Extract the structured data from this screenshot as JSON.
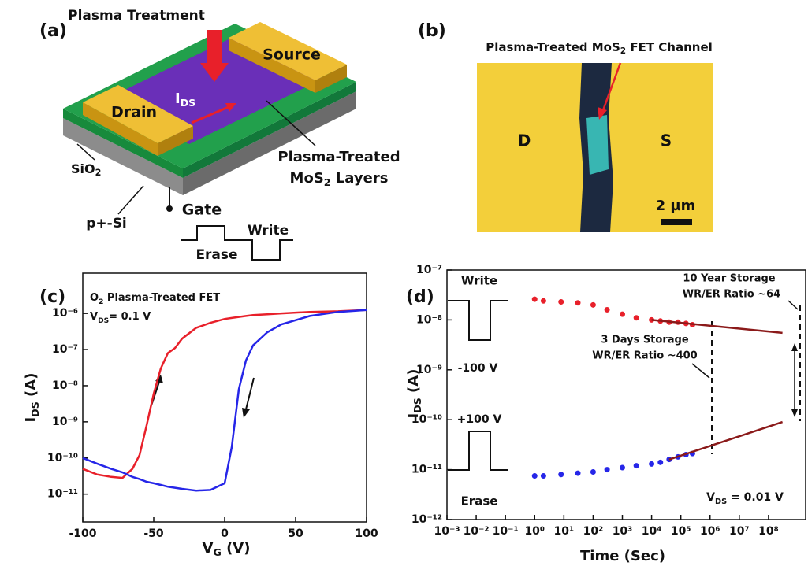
{
  "panel_labels": [
    "(a)",
    "(b)",
    "(c)",
    "(d)"
  ],
  "diagram": {
    "plasma": "Plasma Treatment",
    "source": "Source",
    "drain": "Drain",
    "ids": {
      "main": "I",
      "sub": "DS"
    },
    "sio2": {
      "main": "SiO",
      "sub": "2"
    },
    "mos2_line1": "Plasma-Treated",
    "mos2_line2": {
      "main": "MoS",
      "sub": "2",
      "rest": " Layers"
    },
    "substrate": "p+-Si",
    "gate": "Gate",
    "write": "Write",
    "erase": "Erase"
  },
  "micrograph": {
    "title": {
      "main": "Plasma-Treated MoS",
      "sub": "2",
      "rest": " FET Channel"
    },
    "drain": "D",
    "source": "S",
    "scale": "2 µm"
  },
  "chart_data": [
    {
      "type": "line",
      "log_y": true,
      "x_label": {
        "main": "V",
        "sub": "G",
        "rest": " (V)"
      },
      "y_label": {
        "main": "I",
        "sub": "DS",
        "rest": " (A)"
      },
      "annotations": [
        {
          "main": "O",
          "sub": "2",
          "rest": " Plasma-Treated FET"
        },
        {
          "main": "V",
          "sub": "DS",
          "rest": "= 0.1 V"
        }
      ],
      "x": [
        -100,
        -90,
        -80,
        -72,
        -65,
        -60,
        -55,
        -50,
        -45,
        -40,
        -35,
        -30,
        -20,
        -10,
        0,
        5,
        10,
        15,
        20,
        30,
        40,
        60,
        80,
        100
      ],
      "series": [
        {
          "color": "#e8202a",
          "values": [
            5e-11,
            3.5e-11,
            3e-11,
            2.8e-11,
            5e-11,
            1.2e-10,
            8e-10,
            6e-09,
            3e-08,
            8e-08,
            1.1e-07,
            2e-07,
            4e-07,
            5.5e-07,
            7e-07,
            7.5e-07,
            8e-07,
            8.5e-07,
            9e-07,
            9.5e-07,
            1e-06,
            1.1e-06,
            1.15e-06,
            1.25e-06
          ]
        },
        {
          "color": "#2626e8",
          "values": [
            1e-10,
            7e-11,
            5e-11,
            4e-11,
            3e-11,
            2.6e-11,
            2.2e-11,
            2e-11,
            1.8e-11,
            1.6e-11,
            1.5e-11,
            1.4e-11,
            1.25e-11,
            1.3e-11,
            2e-11,
            2e-10,
            8e-09,
            5e-08,
            1.3e-07,
            3e-07,
            5e-07,
            8.5e-07,
            1.1e-06,
            1.25e-06
          ]
        }
      ],
      "xlim": [
        -100,
        100
      ],
      "xticks": [
        -100,
        -50,
        0,
        50,
        100
      ],
      "ylim": [
        1.7e-12,
        1.3e-05
      ],
      "yticks": [
        {
          "value": 1e-11,
          "label": "10⁻¹¹"
        },
        {
          "value": 1e-10,
          "label": "10⁻¹⁰"
        },
        {
          "value": 1e-09,
          "label": "10⁻⁹"
        },
        {
          "value": 1e-08,
          "label": "10⁻⁸"
        },
        {
          "value": 1e-07,
          "label": "10⁻⁷"
        },
        {
          "value": 1e-06,
          "label": "10⁻⁶"
        }
      ]
    },
    {
      "type": "scatter",
      "log_x": true,
      "log_y": true,
      "x_label": "Time (Sec)",
      "y_label": {
        "main": "I",
        "sub": "DS",
        "rest": " (A)"
      },
      "annotations": [
        "10 Year Storage",
        "WR/ER Ratio ~64",
        "3 Days Storage",
        "WR/ER Ratio ~400",
        "-100 V",
        "+100 V",
        {
          "main": "V",
          "sub": "DS",
          "rest": " = 0.01 V"
        }
      ],
      "series": [
        {
          "name": "Write",
          "style": "dots",
          "color": "#e8202a",
          "x": [
            1,
            2,
            8,
            30,
            100,
            300,
            1000,
            3000,
            10000,
            20000,
            40000,
            80000,
            150000,
            250000
          ],
          "values": [
            2.6e-08,
            2.4e-08,
            2.3e-08,
            2.2e-08,
            2e-08,
            1.6e-08,
            1.3e-08,
            1.1e-08,
            1e-08,
            9.5e-09,
            9e-09,
            9e-09,
            8.5e-09,
            8e-09
          ]
        },
        {
          "name": "Erase",
          "style": "dots",
          "color": "#2626e8",
          "x": [
            1,
            2,
            8,
            30,
            100,
            300,
            1000,
            3000,
            10000,
            20000,
            40000,
            80000,
            150000,
            250000
          ],
          "values": [
            7.5e-12,
            7.5e-12,
            8e-12,
            8.5e-12,
            9e-12,
            1e-11,
            1.1e-11,
            1.2e-11,
            1.3e-11,
            1.4e-11,
            1.6e-11,
            1.8e-11,
            2e-11,
            2.1e-11
          ]
        },
        {
          "style": "line",
          "color": "#8b1a1a",
          "x": [
            10000,
            300000000
          ],
          "values": [
            1e-08,
            5.5e-09
          ]
        },
        {
          "style": "line",
          "color": "#8b1a1a",
          "x": [
            40000,
            300000000
          ],
          "values": [
            1.6e-11,
            9e-11
          ]
        }
      ],
      "xlim": [
        0.001,
        1860000000
      ],
      "xticks": [
        {
          "value": 0.001,
          "label": "10⁻³"
        },
        {
          "value": 0.01,
          "label": "10⁻²"
        },
        {
          "value": 0.1,
          "label": "10⁻¹"
        },
        {
          "value": 1,
          "label": "10⁰"
        },
        {
          "value": 10,
          "label": "10¹"
        },
        {
          "value": 100,
          "label": "10²"
        },
        {
          "value": 1000,
          "label": "10³"
        },
        {
          "value": 10000,
          "label": "10⁴"
        },
        {
          "value": 100000,
          "label": "10⁵"
        },
        {
          "value": 1000000,
          "label": "10⁶"
        },
        {
          "value": 10000000,
          "label": "10⁷"
        },
        {
          "value": 100000000,
          "label": "10⁸"
        }
      ],
      "ylim": [
        1e-12,
        1e-07
      ],
      "yticks": [
        {
          "value": 1e-12,
          "label": "10⁻¹²"
        },
        {
          "value": 1e-11,
          "label": "10⁻¹¹"
        },
        {
          "value": 1e-10,
          "label": "10⁻¹⁰"
        },
        {
          "value": 1e-09,
          "label": "10⁻⁹"
        },
        {
          "value": 1e-08,
          "label": "10⁻⁸"
        },
        {
          "value": 1e-07,
          "label": "10⁻⁷"
        }
      ]
    }
  ]
}
